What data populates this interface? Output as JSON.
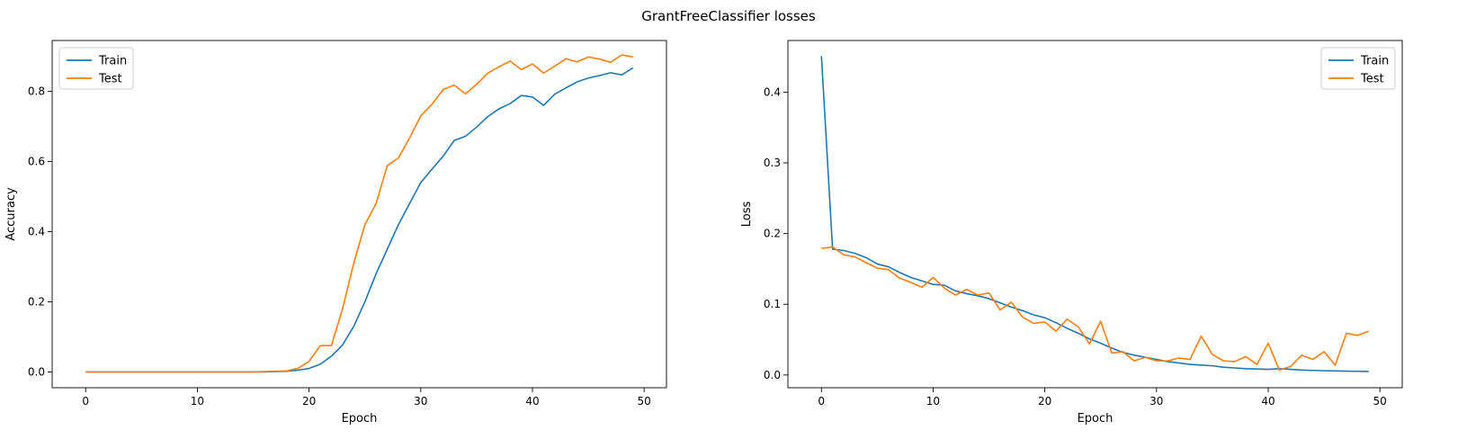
{
  "figure": {
    "title": "GrantFreeClassifier losses"
  },
  "colors": {
    "train": "#1f77b4",
    "test": "#ff7f0e"
  },
  "chart_data": [
    {
      "type": "line",
      "title": "",
      "xlabel": "Epoch",
      "ylabel": "Accuracy",
      "xlim": [
        -3,
        52
      ],
      "ylim": [
        -0.045,
        0.945
      ],
      "xticks": [
        0,
        10,
        20,
        30,
        40,
        50
      ],
      "yticks": [
        0.0,
        0.2,
        0.4,
        0.6,
        0.8
      ],
      "ytick_labels": [
        "0.0",
        "0.2",
        "0.4",
        "0.6",
        "0.8"
      ],
      "grid": false,
      "legend": "top-left",
      "x": [
        0,
        1,
        2,
        3,
        4,
        5,
        6,
        7,
        8,
        9,
        10,
        11,
        12,
        13,
        14,
        15,
        16,
        17,
        18,
        19,
        20,
        21,
        22,
        23,
        24,
        25,
        26,
        27,
        28,
        29,
        30,
        31,
        32,
        33,
        34,
        35,
        36,
        37,
        38,
        39,
        40,
        41,
        42,
        43,
        44,
        45,
        46,
        47,
        48,
        49
      ],
      "series": [
        {
          "name": "Train",
          "values": [
            0,
            0,
            0,
            0,
            0,
            0,
            0,
            0,
            0,
            0,
            0,
            0,
            0,
            0,
            0,
            0,
            0,
            0.001,
            0.002,
            0.005,
            0.01,
            0.022,
            0.045,
            0.077,
            0.13,
            0.2,
            0.28,
            0.35,
            0.42,
            0.48,
            0.54,
            0.578,
            0.615,
            0.66,
            0.672,
            0.698,
            0.728,
            0.75,
            0.765,
            0.788,
            0.784,
            0.76,
            0.792,
            0.81,
            0.827,
            0.838,
            0.845,
            0.853,
            0.847,
            0.867
          ]
        },
        {
          "name": "Test",
          "values": [
            0,
            0,
            0,
            0,
            0,
            0,
            0,
            0,
            0,
            0,
            0,
            0,
            0,
            0,
            0,
            0,
            0.001,
            0.002,
            0.003,
            0.01,
            0.03,
            0.075,
            0.075,
            0.18,
            0.31,
            0.42,
            0.48,
            0.588,
            0.61,
            0.667,
            0.73,
            0.763,
            0.805,
            0.818,
            0.793,
            0.82,
            0.852,
            0.87,
            0.886,
            0.862,
            0.878,
            0.852,
            0.872,
            0.893,
            0.884,
            0.898,
            0.892,
            0.883,
            0.904,
            0.898
          ]
        }
      ]
    },
    {
      "type": "line",
      "title": "",
      "xlabel": "Epoch",
      "ylabel": "Loss",
      "xlim": [
        -3,
        52
      ],
      "ylim": [
        -0.018,
        0.473
      ],
      "xticks": [
        0,
        10,
        20,
        30,
        40,
        50
      ],
      "yticks": [
        0.0,
        0.1,
        0.2,
        0.3,
        0.4
      ],
      "ytick_labels": [
        "0.0",
        "0.1",
        "0.2",
        "0.3",
        "0.4"
      ],
      "grid": false,
      "legend": "top-right",
      "x": [
        0,
        1,
        2,
        3,
        4,
        5,
        6,
        7,
        8,
        9,
        10,
        11,
        12,
        13,
        14,
        15,
        16,
        17,
        18,
        19,
        20,
        21,
        22,
        23,
        24,
        25,
        26,
        27,
        28,
        29,
        30,
        31,
        32,
        33,
        34,
        35,
        36,
        37,
        38,
        39,
        40,
        41,
        42,
        43,
        44,
        45,
        46,
        47,
        48,
        49
      ],
      "series": [
        {
          "name": "Train",
          "values": [
            0.451,
            0.178,
            0.176,
            0.172,
            0.166,
            0.157,
            0.153,
            0.145,
            0.138,
            0.133,
            0.128,
            0.127,
            0.119,
            0.115,
            0.112,
            0.108,
            0.102,
            0.096,
            0.091,
            0.085,
            0.081,
            0.074,
            0.066,
            0.059,
            0.051,
            0.045,
            0.038,
            0.032,
            0.028,
            0.025,
            0.022,
            0.019,
            0.017,
            0.015,
            0.014,
            0.013,
            0.011,
            0.01,
            0.009,
            0.0085,
            0.008,
            0.009,
            0.008,
            0.007,
            0.0065,
            0.006,
            0.0058,
            0.0055,
            0.0052,
            0.005
          ]
        },
        {
          "name": "Test",
          "values": [
            0.179,
            0.181,
            0.17,
            0.167,
            0.159,
            0.151,
            0.149,
            0.137,
            0.131,
            0.124,
            0.138,
            0.123,
            0.113,
            0.121,
            0.113,
            0.116,
            0.092,
            0.103,
            0.082,
            0.073,
            0.075,
            0.062,
            0.079,
            0.068,
            0.044,
            0.076,
            0.031,
            0.033,
            0.02,
            0.025,
            0.02,
            0.02,
            0.024,
            0.022,
            0.055,
            0.029,
            0.02,
            0.019,
            0.026,
            0.015,
            0.045,
            0.007,
            0.012,
            0.028,
            0.022,
            0.033,
            0.014,
            0.059,
            0.056,
            0.062
          ]
        }
      ]
    }
  ]
}
